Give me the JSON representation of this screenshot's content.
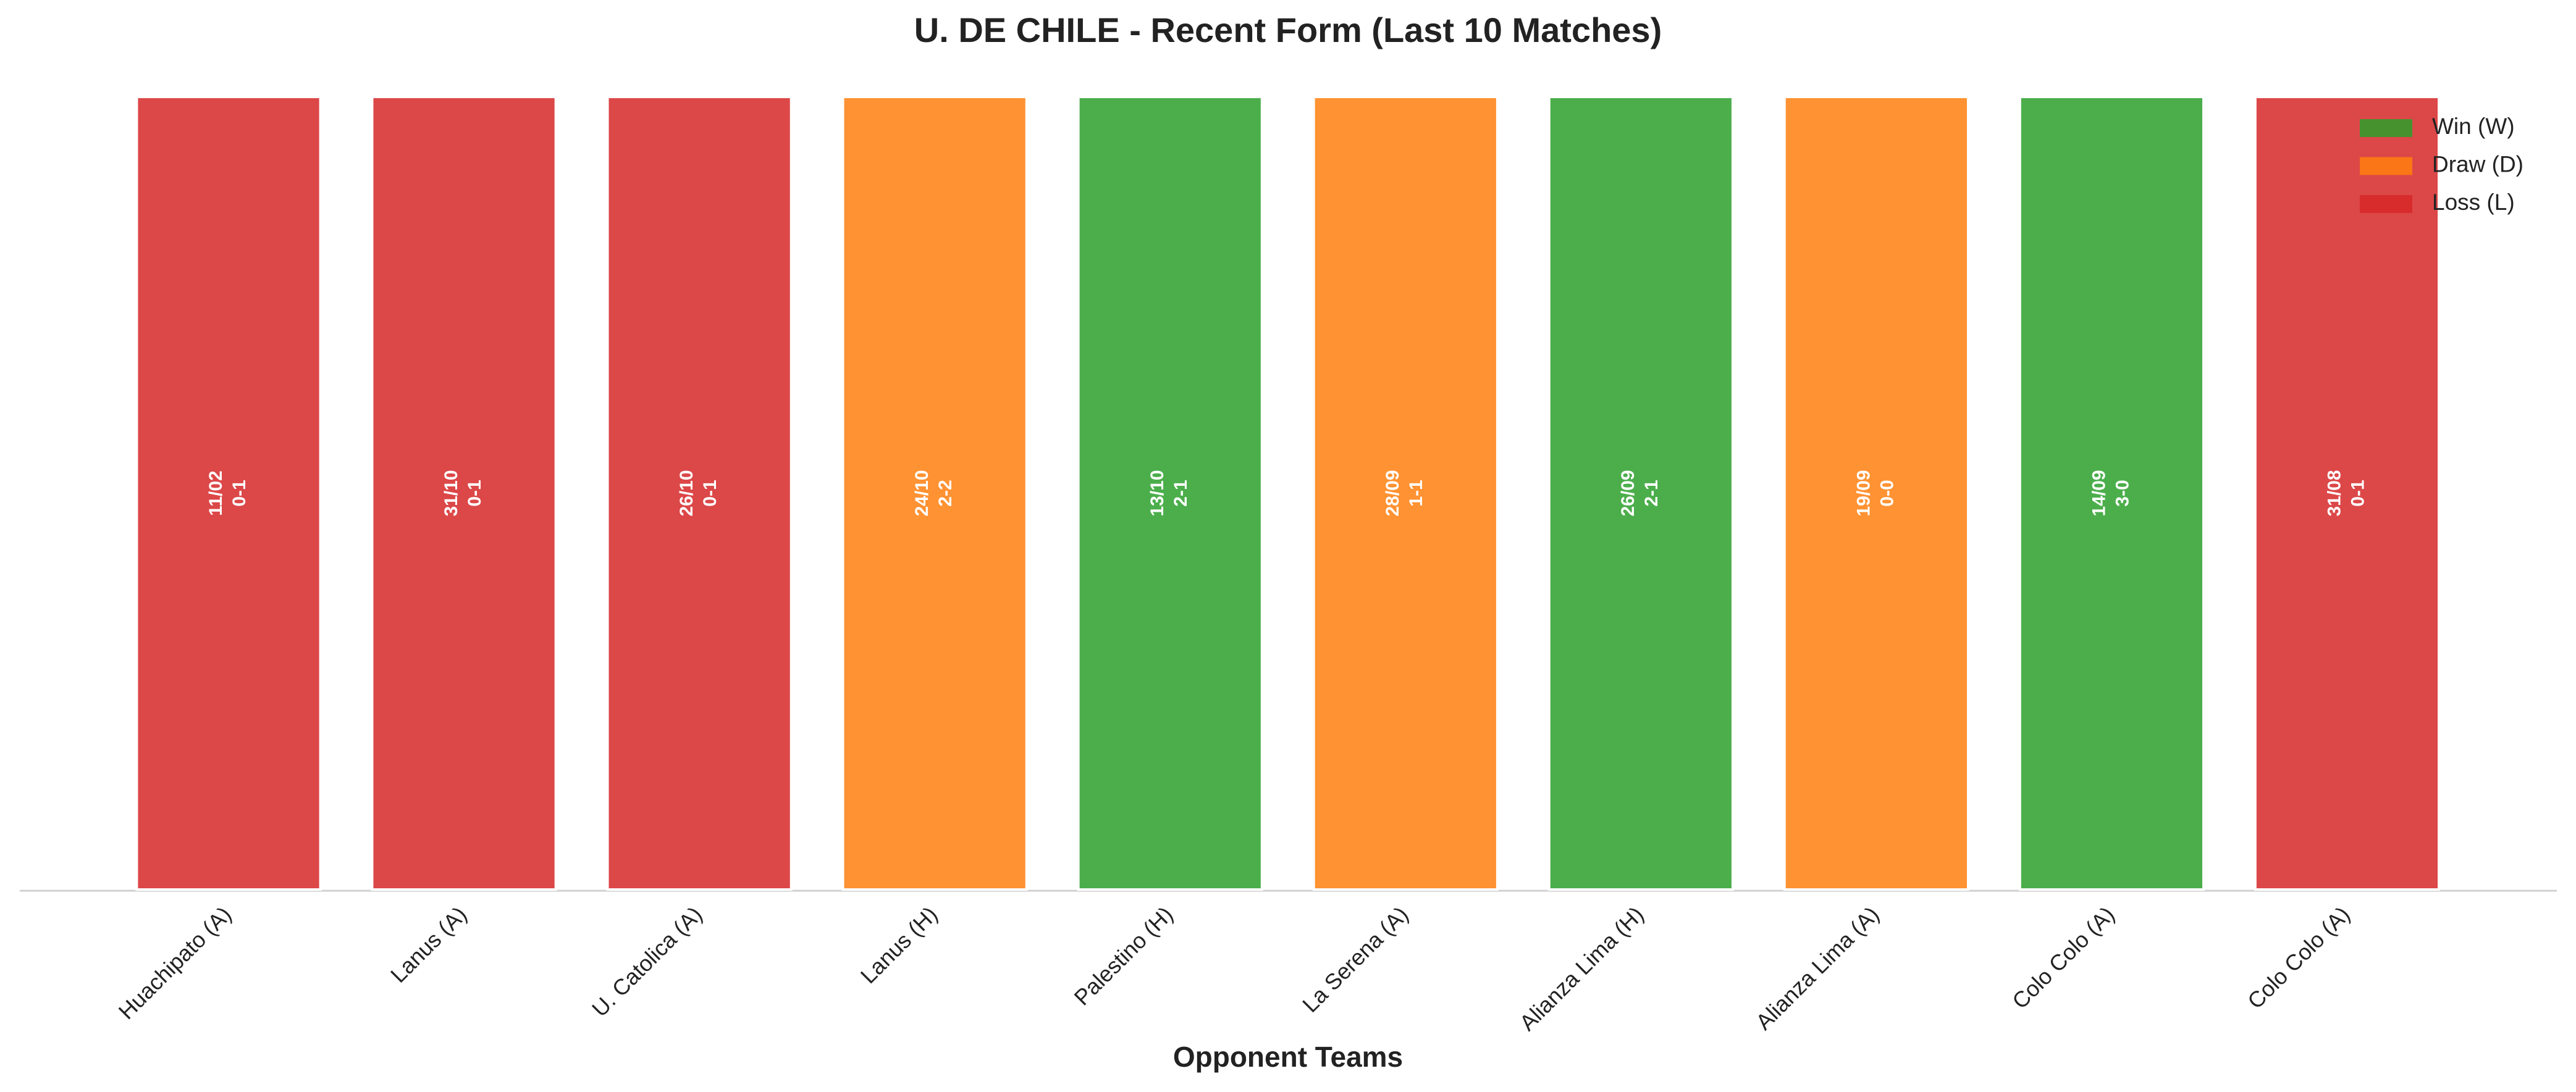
{
  "chart_data": {
    "type": "bar",
    "title": "U. DE CHILE - Recent Form (Last 10 Matches)",
    "x_label": "Opponent Teams",
    "categories": [
      "Huachipato (A)",
      "Lanus (A)",
      "U. Catolica (A)",
      "Lanus (H)",
      "Palestino (H)",
      "La Serena (A)",
      "Alianza Lima (H)",
      "Alianza Lima (A)",
      "Colo Colo (A)",
      "Colo Colo (A)"
    ],
    "values": [
      1,
      1,
      1,
      1,
      1,
      1,
      1,
      1,
      1,
      1
    ],
    "dates": [
      "11/02",
      "31/10",
      "26/10",
      "24/10",
      "13/10",
      "28/09",
      "26/09",
      "19/09",
      "14/09",
      "31/08"
    ],
    "scores": [
      "0-1",
      "0-1",
      "0-1",
      "2-2",
      "2-1",
      "1-1",
      "2-1",
      "0-0",
      "3-0",
      "0-1"
    ],
    "colors": [
      "#d62728",
      "#d62728",
      "#d62728",
      "#ff7f0e",
      "#2ca02c",
      "#ff7f0e",
      "#2ca02c",
      "#ff7f0e",
      "#2ca02c",
      "#d62728"
    ],
    "legend_entries": [
      {
        "name": "Win (W)",
        "color": "#2ca02c"
      },
      {
        "name": "Draw (D)",
        "color": "#ff7f0e"
      },
      {
        "name": "Loss (L)",
        "color": "#d62728"
      }
    ],
    "legend": "upper right",
    "ylim": [
      0,
      1
    ]
  }
}
